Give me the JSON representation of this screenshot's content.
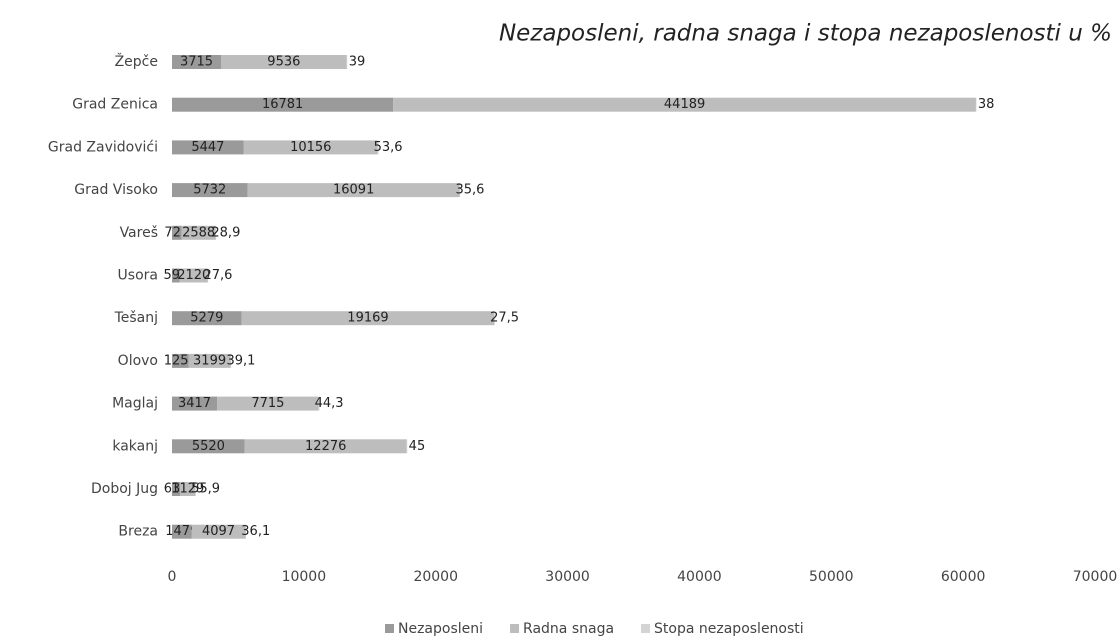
{
  "chart_data": {
    "type": "stacked-barh",
    "title": "Nezaposleni, radna snaga i stopa nezaposlenosti u %",
    "categories": [
      "Žepče",
      "Grad Zenica",
      "Grad Zavidovići",
      "Grad Visoko",
      "Vareš",
      "Usora",
      "Tešanj",
      "Olovo",
      "Maglaj",
      "kakanj",
      "Doboj Jug",
      "Breza"
    ],
    "series": [
      {
        "name": "Nezaposleni",
        "color": "#9a9a9a",
        "values": [
          3715,
          16781,
          5447,
          5732,
          725,
          592,
          5279,
          1251,
          3417,
          5520,
          631,
          1479
        ]
      },
      {
        "name": "Radna snaga",
        "color": "#bdbdbd",
        "values": [
          9536,
          44189,
          10156,
          16091,
          2588,
          2120,
          19169,
          3199,
          7715,
          12276,
          1129,
          4097
        ]
      },
      {
        "name": "Stopa nezaposlenosti",
        "color": "#d4d4d4",
        "values": [
          39,
          38,
          53.6,
          35.6,
          28.9,
          27.6,
          27.5,
          39.1,
          44.3,
          45,
          55.9,
          36.1
        ],
        "value_labels": [
          "39",
          "38",
          "53,6",
          "35,6",
          "28,9",
          "27,6",
          "27,5",
          "39,1",
          "44,3",
          "45",
          "55,9",
          "36,1"
        ]
      }
    ],
    "xlim": [
      0,
      70000
    ],
    "xticks": [
      0,
      10000,
      20000,
      30000,
      40000,
      50000,
      60000,
      70000
    ],
    "legend": "bottom"
  }
}
